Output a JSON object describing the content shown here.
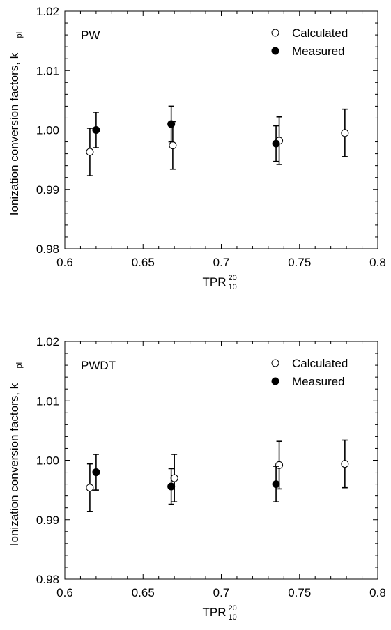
{
  "chart_data": [
    {
      "type": "scatter",
      "panel_label": "PW",
      "xlabel": "TPR",
      "xlabel_sup": "20",
      "xlabel_sub": "10",
      "ylabel": "Ionization conversion  factors, k",
      "ylabel_sub": "pl",
      "xlim": [
        0.6,
        0.8
      ],
      "ylim": [
        0.98,
        1.02
      ],
      "x_ticks": [
        "0.6",
        "0.65",
        "0.7",
        "0.75",
        "0.8"
      ],
      "y_ticks": [
        "0.98",
        "0.99",
        "1.00",
        "1.01",
        "1.02"
      ],
      "grid": false,
      "legend_position": "top-right",
      "series": [
        {
          "name": "Calculated",
          "marker": "open-circle",
          "points": [
            {
              "x": 0.616,
              "y": 0.9963,
              "err": 0.004
            },
            {
              "x": 0.669,
              "y": 0.9974,
              "err": 0.004
            },
            {
              "x": 0.737,
              "y": 0.9982,
              "err": 0.004
            },
            {
              "x": 0.779,
              "y": 0.9995,
              "err": 0.004
            }
          ]
        },
        {
          "name": "Measured",
          "marker": "filled-circle",
          "points": [
            {
              "x": 0.62,
              "y": 1.0,
              "err": 0.003
            },
            {
              "x": 0.668,
              "y": 1.001,
              "err": 0.003
            },
            {
              "x": 0.735,
              "y": 0.9977,
              "err": 0.003
            }
          ]
        }
      ]
    },
    {
      "type": "scatter",
      "panel_label": "PWDT",
      "xlabel": "TPR",
      "xlabel_sup": "20",
      "xlabel_sub": "10",
      "ylabel": "Ionization conversion  factors, k",
      "ylabel_sub": "pl",
      "xlim": [
        0.6,
        0.8
      ],
      "ylim": [
        0.98,
        1.02
      ],
      "x_ticks": [
        "0.6",
        "0.65",
        "0.7",
        "0.75",
        "0.8"
      ],
      "y_ticks": [
        "0.98",
        "0.99",
        "1.00",
        "1.01",
        "1.02"
      ],
      "grid": false,
      "legend_position": "top-right",
      "series": [
        {
          "name": "Calculated",
          "marker": "open-circle",
          "points": [
            {
              "x": 0.616,
              "y": 0.9954,
              "err": 0.004
            },
            {
              "x": 0.67,
              "y": 0.997,
              "err": 0.004
            },
            {
              "x": 0.737,
              "y": 0.9992,
              "err": 0.004
            },
            {
              "x": 0.779,
              "y": 0.9994,
              "err": 0.004
            }
          ]
        },
        {
          "name": "Measured",
          "marker": "filled-circle",
          "points": [
            {
              "x": 0.62,
              "y": 0.998,
              "err": 0.003
            },
            {
              "x": 0.668,
              "y": 0.9956,
              "err": 0.003
            },
            {
              "x": 0.735,
              "y": 0.996,
              "err": 0.003
            }
          ]
        }
      ]
    }
  ]
}
